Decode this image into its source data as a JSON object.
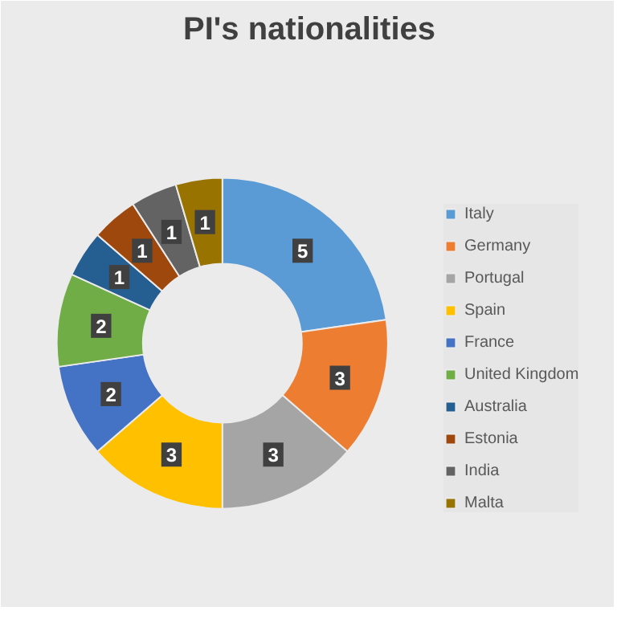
{
  "chart_data": {
    "type": "donut",
    "title": "PI's nationalities",
    "categories": [
      "Italy",
      "Germany",
      "Portugal",
      "Spain",
      "France",
      "United Kingdom",
      "Australia",
      "Estonia",
      "India",
      "Malta"
    ],
    "values": [
      5,
      3,
      3,
      3,
      2,
      2,
      1,
      1,
      1,
      1
    ],
    "colors": [
      "#5b9bd5",
      "#ed7d31",
      "#a5a5a5",
      "#ffc000",
      "#4472c4",
      "#70ad47",
      "#255e91",
      "#9e480e",
      "#636363",
      "#997300"
    ],
    "data_labels": true,
    "legend": "right"
  }
}
